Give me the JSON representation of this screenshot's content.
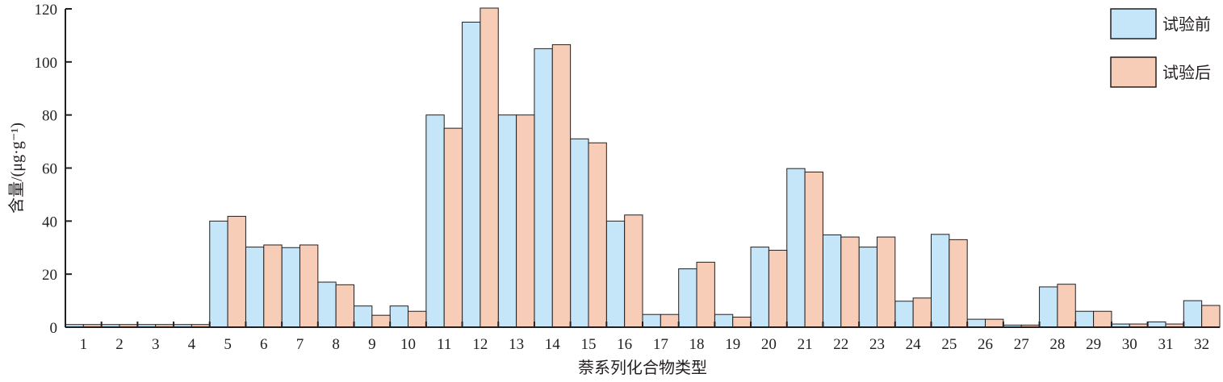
{
  "chart_data": {
    "type": "bar",
    "xlabel": "萘系列化合物类型",
    "ylabel": "含量/(μg·g⁻¹)",
    "ylim": [
      0,
      120
    ],
    "yticks": [
      0,
      20,
      40,
      60,
      80,
      100,
      120
    ],
    "legend_position": "top-right",
    "grid": false,
    "categories": [
      "1",
      "2",
      "3",
      "4",
      "5",
      "6",
      "7",
      "8",
      "9",
      "10",
      "11",
      "12",
      "13",
      "14",
      "15",
      "16",
      "17",
      "18",
      "19",
      "20",
      "21",
      "22",
      "23",
      "24",
      "25",
      "26",
      "27",
      "28",
      "29",
      "30",
      "31",
      "32"
    ],
    "series": [
      {
        "name": "试验前",
        "color": "#c5e5f8",
        "values": [
          1,
          1,
          1,
          1,
          40,
          30.2,
          30,
          17,
          8,
          8,
          80,
          115,
          80,
          105,
          71,
          40,
          4.8,
          22,
          4.8,
          30.2,
          59.8,
          34.8,
          30.2,
          9.8,
          35,
          3,
          0.8,
          15.2,
          6,
          1.2,
          2,
          10
        ]
      },
      {
        "name": "试验后",
        "color": "#f8cdb7",
        "values": [
          1,
          1,
          1,
          1,
          41.8,
          31,
          31,
          16,
          4.5,
          6,
          75,
          120.3,
          80,
          106.5,
          69.5,
          42.3,
          4.8,
          24.5,
          3.8,
          29,
          58.5,
          34,
          34,
          11,
          33,
          3,
          0.8,
          16.2,
          6,
          1.2,
          1.2,
          8.2
        ]
      }
    ]
  }
}
